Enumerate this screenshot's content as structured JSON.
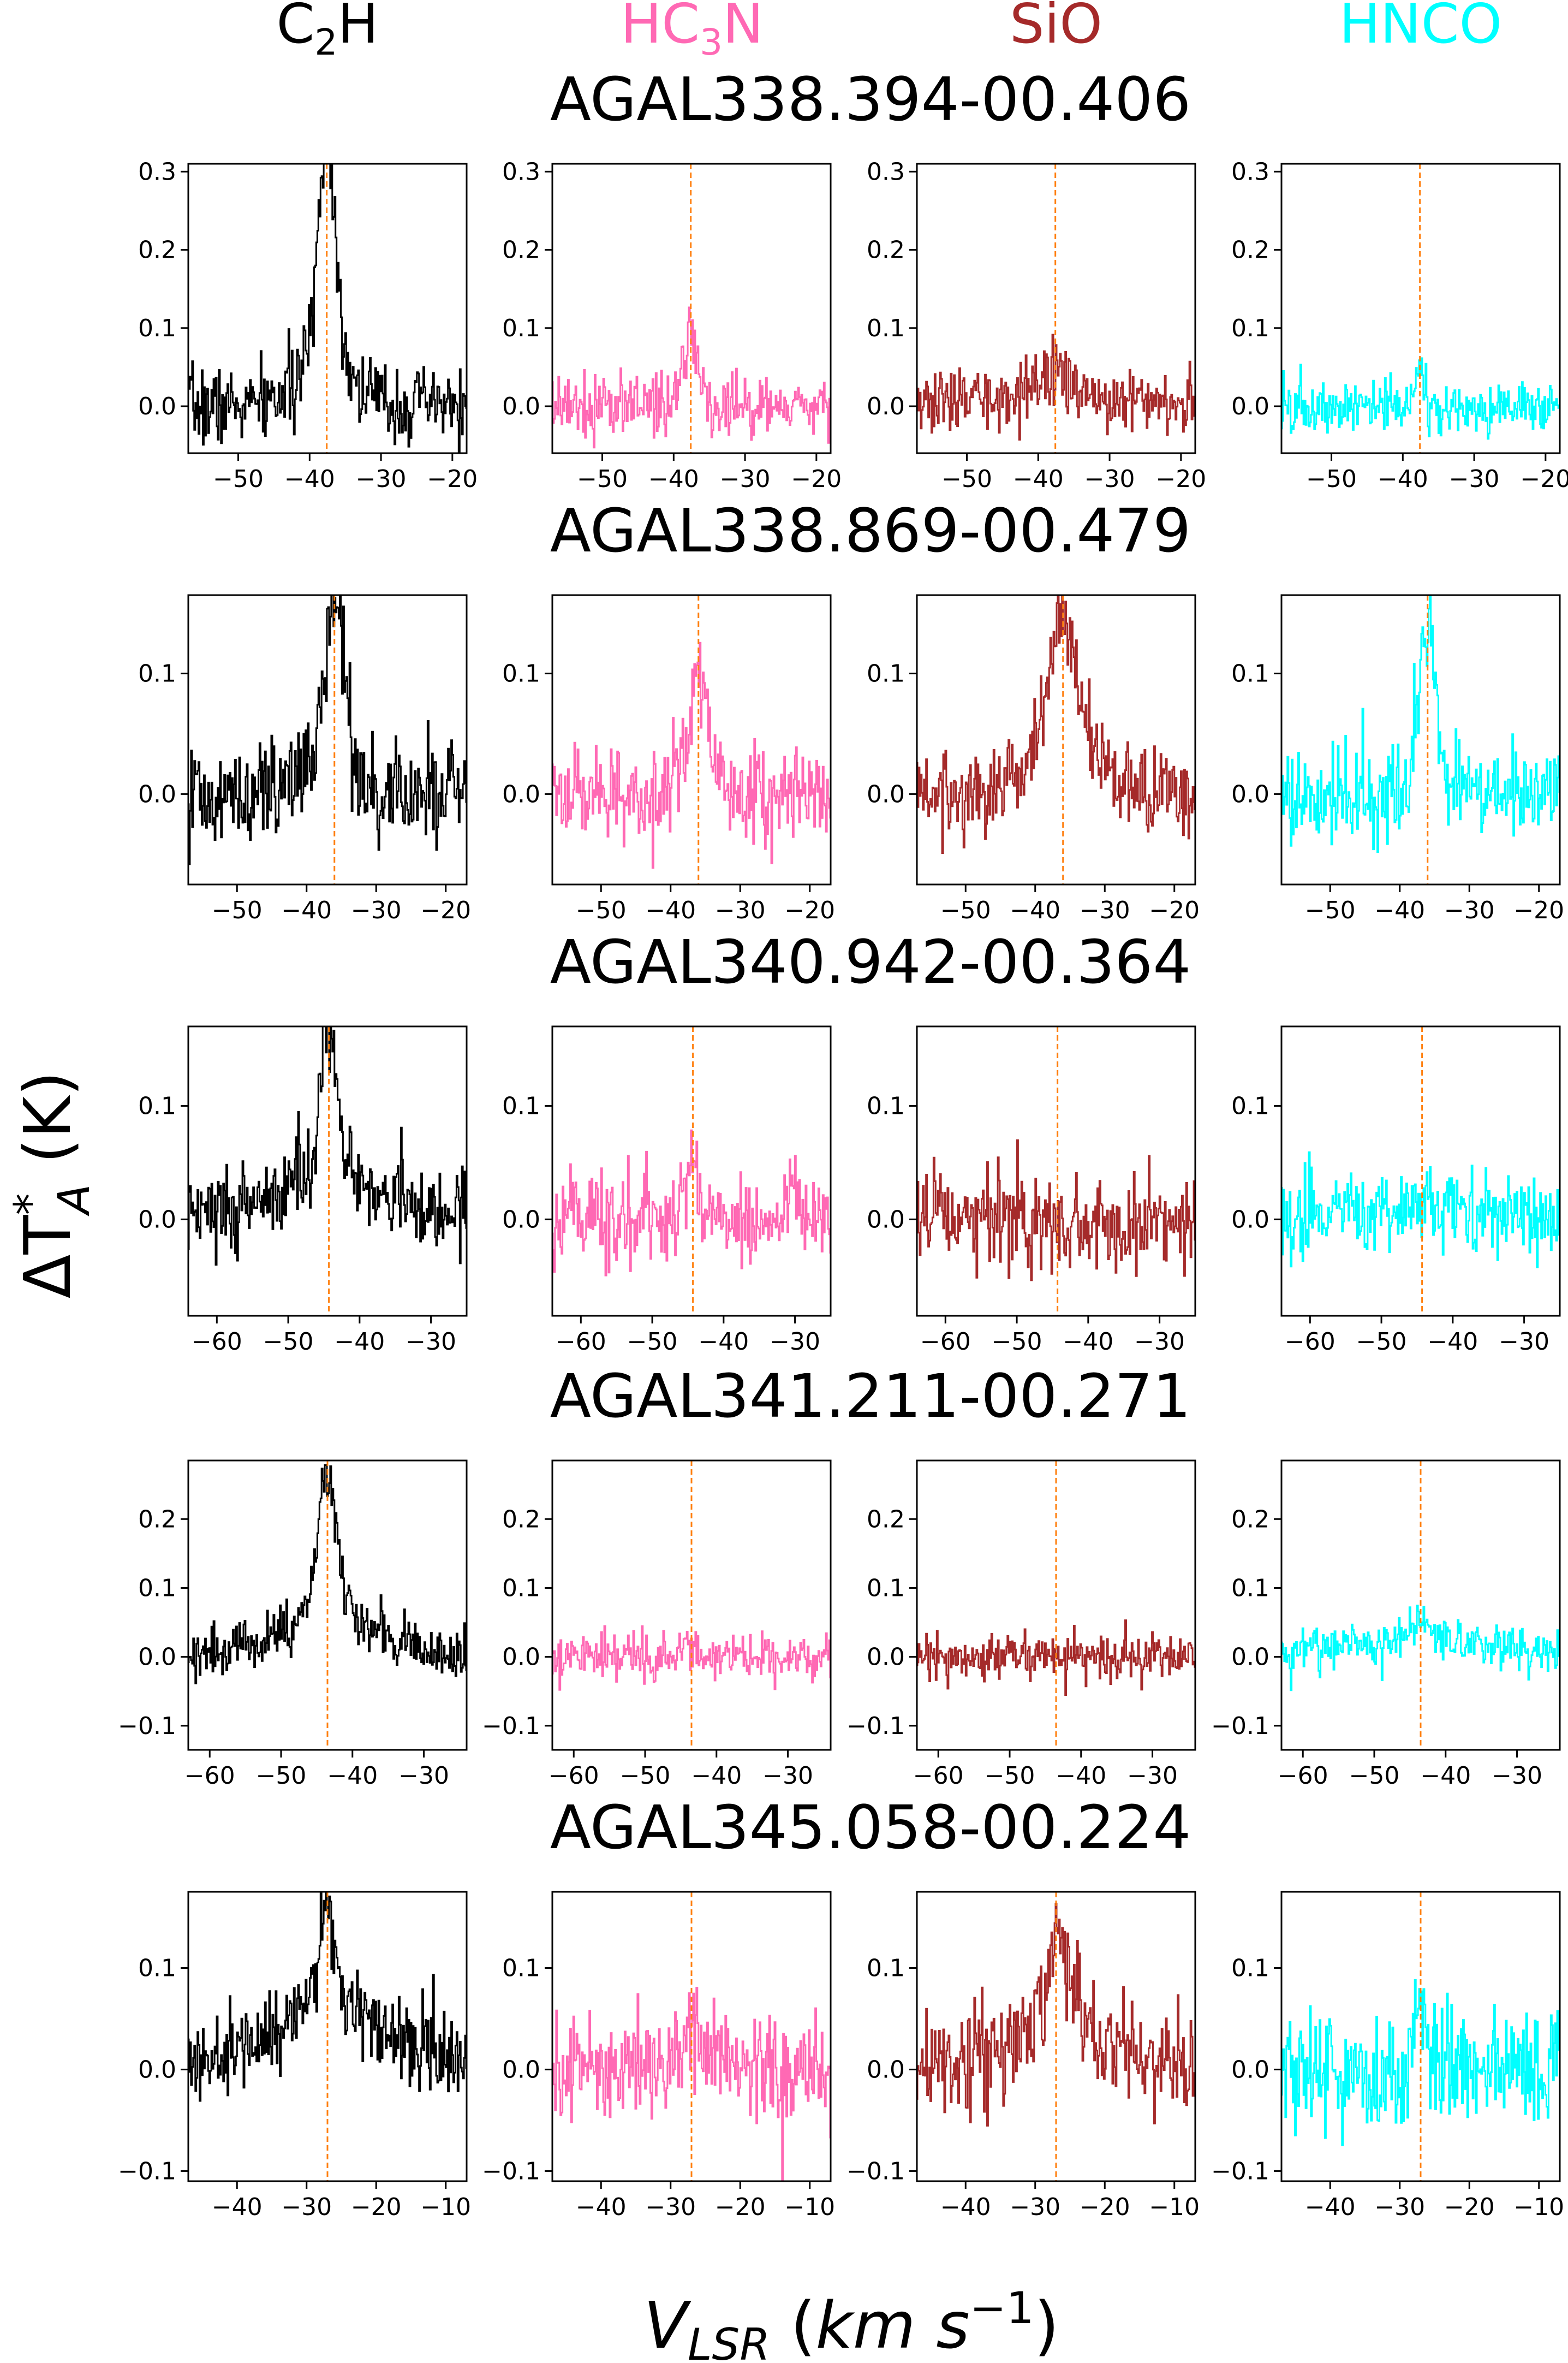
{
  "figure": {
    "ylabel": "ΔT*A (K)",
    "xlabel": "VLSR (km s−1)",
    "columns": [
      {
        "label": "C2H",
        "color": "#000000"
      },
      {
        "label": "HC3N",
        "color": "#ff69b4"
      },
      {
        "label": "SiO",
        "color": "#a52a2a"
      },
      {
        "label": "HNCO",
        "color": "#00ffff"
      }
    ],
    "marker_color": "#ff7f0e"
  },
  "chart_data": [
    {
      "type": "line",
      "source": "AGAL338.394-00.406",
      "vlsr": -37.6,
      "xlim": [
        -57,
        -18
      ],
      "ylim": [
        -0.06,
        0.31
      ],
      "xticks": [
        -50,
        -40,
        -30,
        -20
      ],
      "yticks": [
        0.0,
        0.1,
        0.2,
        0.3
      ],
      "yticklabels": [
        "0.0",
        "0.1",
        "0.2",
        "0.3"
      ],
      "series": [
        {
          "name": "C2H",
          "peak": 0.28,
          "width": 1.3,
          "wing": 0.05,
          "wing_width": 4.0,
          "noise": 0.025,
          "baseline": 0.0
        },
        {
          "name": "HC3N",
          "peak": 0.1,
          "width": 1.0,
          "wing": 0.0,
          "wing_width": 3.0,
          "noise": 0.022,
          "baseline": 0.0
        },
        {
          "name": "SiO",
          "peak": 0.02,
          "width": 2.0,
          "wing": 0.01,
          "wing_width": 6.0,
          "noise": 0.02,
          "baseline": 0.01
        },
        {
          "name": "HNCO",
          "peak": 0.04,
          "width": 0.7,
          "wing": 0.0,
          "wing_width": 3.0,
          "noise": 0.018,
          "baseline": 0.0
        }
      ]
    },
    {
      "type": "line",
      "source": "AGAL338.869-00.479",
      "vlsr": -36.0,
      "xlim": [
        -57,
        -17
      ],
      "ylim": [
        -0.075,
        0.165
      ],
      "xticks": [
        -50,
        -40,
        -30,
        -20
      ],
      "yticks": [
        0.0,
        0.1
      ],
      "yticklabels": [
        "0.0",
        "0.1"
      ],
      "series": [
        {
          "name": "C2H",
          "peak": 0.13,
          "width": 1.3,
          "wing": 0.03,
          "wing_width": 4.0,
          "noise": 0.022,
          "baseline": 0.0
        },
        {
          "name": "HC3N",
          "peak": 0.09,
          "width": 1.0,
          "wing": 0.02,
          "wing_width": 3.0,
          "noise": 0.02,
          "baseline": 0.0
        },
        {
          "name": "SiO",
          "peak": 0.1,
          "width": 1.8,
          "wing": 0.05,
          "wing_width": 4.5,
          "noise": 0.018,
          "baseline": 0.0
        },
        {
          "name": "HNCO",
          "peak": 0.12,
          "width": 1.0,
          "wing": 0.03,
          "wing_width": 3.0,
          "noise": 0.02,
          "baseline": 0.0
        }
      ]
    },
    {
      "type": "line",
      "source": "AGAL340.942-00.364",
      "vlsr": -44.3,
      "xlim": [
        -64,
        -25
      ],
      "ylim": [
        -0.085,
        0.17
      ],
      "xticks": [
        -60,
        -50,
        -40,
        -30
      ],
      "yticks": [
        0.0,
        0.1
      ],
      "yticklabels": [
        "0.0",
        "0.1"
      ],
      "series": [
        {
          "name": "C2H",
          "peak": 0.13,
          "width": 1.0,
          "wing": 0.03,
          "wing_width": 5.0,
          "noise": 0.02,
          "baseline": 0.02
        },
        {
          "name": "HC3N",
          "peak": 0.05,
          "width": 1.0,
          "wing": 0.0,
          "wing_width": 3.0,
          "noise": 0.022,
          "baseline": 0.0
        },
        {
          "name": "SiO",
          "peak": 0.0,
          "width": 1.0,
          "wing": 0.0,
          "wing_width": 3.0,
          "noise": 0.022,
          "baseline": 0.0
        },
        {
          "name": "HNCO",
          "peak": 0.01,
          "width": 1.0,
          "wing": 0.0,
          "wing_width": 3.0,
          "noise": 0.018,
          "baseline": 0.01
        }
      ]
    },
    {
      "type": "line",
      "source": "AGAL341.211-00.271",
      "vlsr": -43.5,
      "xlim": [
        -63,
        -24
      ],
      "ylim": [
        -0.135,
        0.285
      ],
      "xticks": [
        -60,
        -50,
        -40,
        -30
      ],
      "yticks": [
        -0.1,
        0.0,
        0.1,
        0.2
      ],
      "yticklabels": [
        "−0.1",
        "0.0",
        "0.1",
        "0.2"
      ],
      "series": [
        {
          "name": "C2H",
          "peak": 0.2,
          "width": 1.3,
          "wing": 0.06,
          "wing_width": 6.0,
          "noise": 0.02,
          "baseline": 0.01
        },
        {
          "name": "HC3N",
          "peak": 0.02,
          "width": 1.0,
          "wing": 0.0,
          "wing_width": 3.0,
          "noise": 0.017,
          "baseline": 0.0
        },
        {
          "name": "SiO",
          "peak": 0.0,
          "width": 1.0,
          "wing": 0.0,
          "wing_width": 3.0,
          "noise": 0.017,
          "baseline": 0.0
        },
        {
          "name": "HNCO",
          "peak": 0.03,
          "width": 1.0,
          "wing": 0.0,
          "wing_width": 3.0,
          "noise": 0.018,
          "baseline": 0.03
        }
      ]
    },
    {
      "type": "line",
      "source": "AGAL345.058-00.224",
      "vlsr": -27.0,
      "xlim": [
        -47,
        -7
      ],
      "ylim": [
        -0.11,
        0.175
      ],
      "xticks": [
        -40,
        -30,
        -20,
        -10
      ],
      "yticks": [
        -0.1,
        0.0,
        0.1
      ],
      "yticklabels": [
        "−0.1",
        "0.0",
        "0.1"
      ],
      "series": [
        {
          "name": "C2H",
          "peak": 0.09,
          "width": 1.0,
          "wing": 0.05,
          "wing_width": 5.0,
          "noise": 0.022,
          "baseline": 0.03
        },
        {
          "name": "HC3N",
          "peak": 0.03,
          "width": 1.0,
          "wing": 0.02,
          "wing_width": 3.0,
          "noise": 0.025,
          "baseline": 0.0
        },
        {
          "name": "SiO",
          "peak": 0.08,
          "width": 1.0,
          "wing": 0.04,
          "wing_width": 5.0,
          "noise": 0.025,
          "baseline": 0.02
        },
        {
          "name": "HNCO",
          "peak": 0.07,
          "width": 1.0,
          "wing": 0.0,
          "wing_width": 3.0,
          "noise": 0.03,
          "baseline": 0.0
        }
      ]
    }
  ]
}
